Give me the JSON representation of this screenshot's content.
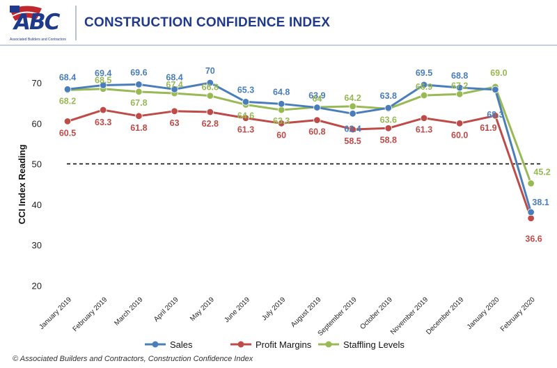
{
  "header": {
    "logo_text": "ABC",
    "logo_subtitle": "Associated Builders and Contractors",
    "title": "CONSTRUCTION CONFIDENCE INDEX"
  },
  "footer": {
    "copyright": "© Associated Builders and Contractors, Construction Confidence Index"
  },
  "chart_data": {
    "type": "line",
    "title": "CONSTRUCTION CONFIDENCE INDEX",
    "xlabel": "",
    "ylabel": "CCI Index Reading",
    "ylim": [
      20,
      75
    ],
    "yticks": [
      "20",
      "30",
      "40",
      "50",
      "60",
      "70"
    ],
    "grid": false,
    "reference_line": 50,
    "legend_position": "bottom",
    "categories": [
      "January 2019",
      "February 2019",
      "March 2019",
      "April 2019",
      "May 2019",
      "June 2019",
      "July 2019",
      "August 2019",
      "September 2019",
      "October 2019",
      "November 2019",
      "December 2019",
      "January 2020",
      "February 2020"
    ],
    "series": [
      {
        "name": "Sales",
        "color": "#4a7ebb",
        "values": [
          68.4,
          69.4,
          69.6,
          68.4,
          70,
          65.3,
          64.8,
          63.9,
          62.4,
          63.8,
          69.5,
          68.8,
          68.3,
          38.1
        ],
        "labels": [
          "68.4",
          "69.4",
          "69.6",
          "68.4",
          "70",
          "65.3",
          "64.8",
          "63.9",
          "62.4",
          "63.8",
          "69.5",
          "68.8",
          "68.3",
          "38.1"
        ]
      },
      {
        "name": "Profit Margins",
        "color": "#be4b48",
        "values": [
          60.5,
          63.3,
          61.8,
          63,
          62.8,
          61.3,
          60,
          60.8,
          58.5,
          58.8,
          61.3,
          60.0,
          61.9,
          36.6
        ],
        "labels": [
          "60.5",
          "63.3",
          "61.8",
          "63",
          "62.8",
          "61.3",
          "60",
          "60.8",
          "58.5",
          "58.8",
          "61.3",
          "60.0",
          "61.9",
          "36.6"
        ]
      },
      {
        "name": "Staffling Levels",
        "color": "#98b954",
        "values": [
          68.2,
          68.5,
          67.8,
          67.4,
          66.8,
          64.6,
          63.3,
          64,
          64.2,
          63.6,
          66.9,
          67.2,
          69.0,
          45.2
        ],
        "labels": [
          "68.2",
          "68.5",
          "67.8",
          "67.4",
          "66.8",
          "64.6",
          "63.3",
          "64",
          "64.2",
          "63.6",
          "66.9",
          "67.2",
          "69.0",
          "45.2"
        ]
      }
    ]
  }
}
